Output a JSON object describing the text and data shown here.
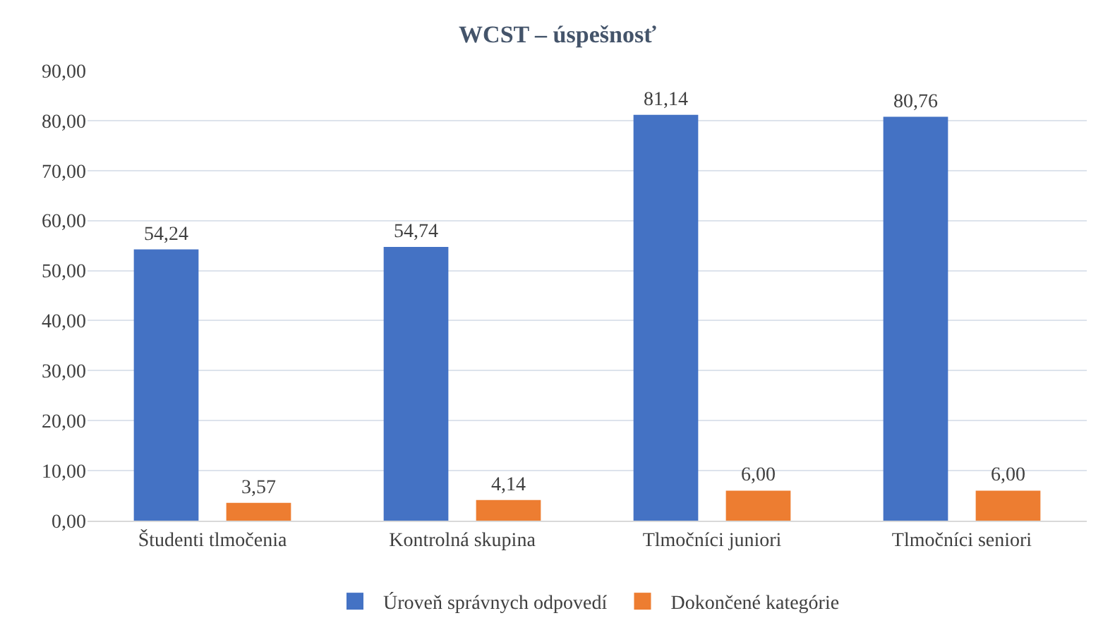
{
  "chart_data": {
    "type": "bar",
    "title": "WCST – úspešnosť",
    "categories": [
      "Študenti tlmočenia",
      "Kontrolná skupina",
      "Tlmočníci juniori",
      "Tlmočníci seniori"
    ],
    "series": [
      {
        "name": "Úroveň správnych odpovedí",
        "color": "#4472c4",
        "values": [
          54.24,
          54.74,
          81.14,
          80.76
        ],
        "value_labels": [
          "54,24",
          "54,74",
          "81,14",
          "80,76"
        ]
      },
      {
        "name": "Dokončené kategórie",
        "color": "#ed7d31",
        "values": [
          3.57,
          4.14,
          6.0,
          6.0
        ],
        "value_labels": [
          "3,57",
          "4,14",
          "6,00",
          "6,00"
        ]
      }
    ],
    "ylim": [
      0,
      90
    ],
    "yticks": [
      {
        "value": 0,
        "label": "0,00"
      },
      {
        "value": 10,
        "label": "10,00"
      },
      {
        "value": 20,
        "label": "20,00"
      },
      {
        "value": 30,
        "label": "30,00"
      },
      {
        "value": 40,
        "label": "40,00"
      },
      {
        "value": 50,
        "label": "50,00"
      },
      {
        "value": 60,
        "label": "60,00"
      },
      {
        "value": 70,
        "label": "70,00"
      },
      {
        "value": 80,
        "label": "80,00"
      },
      {
        "value": 90,
        "label": "90,00"
      }
    ],
    "grid": "y",
    "legend": "bottom"
  }
}
